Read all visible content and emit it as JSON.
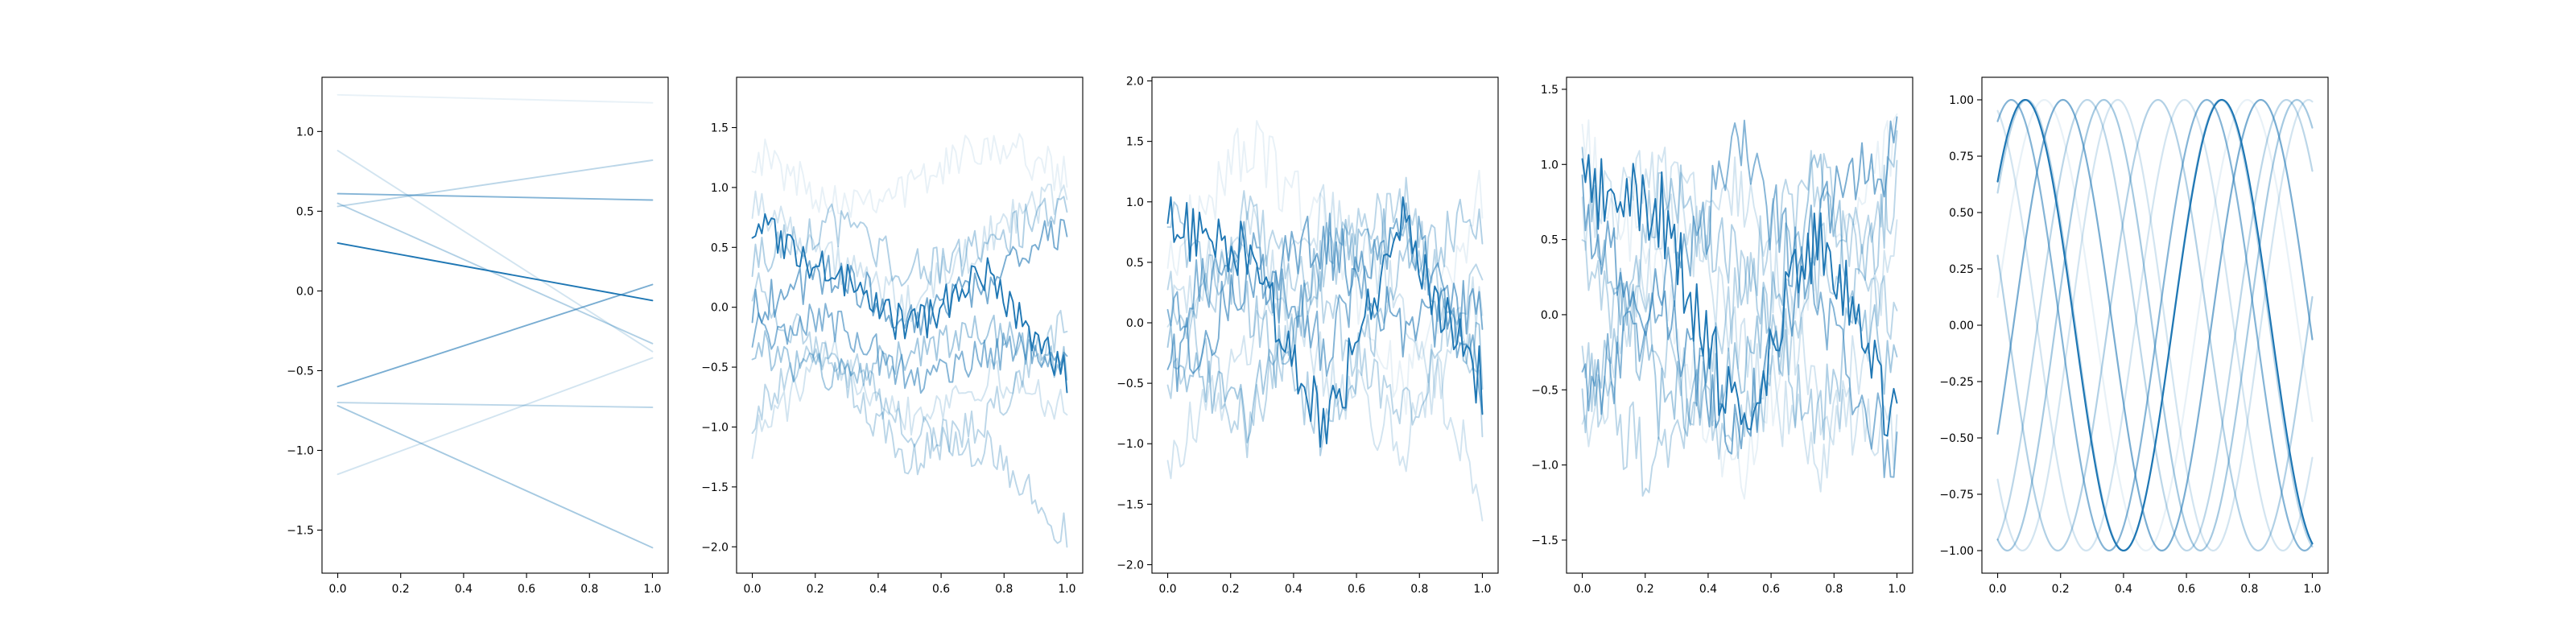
{
  "figure": {
    "background": "#ffffff",
    "line_color": "#1f77b4",
    "alpha_min": 0.1,
    "alpha_max": 1.0
  },
  "chart_data": [
    {
      "type": "line",
      "title": "",
      "xlabel": "",
      "ylabel": "",
      "xlim": [
        -0.05,
        1.05
      ],
      "ylim": [
        -1.77,
        1.34
      ],
      "x_ticks": [
        0.0,
        0.2,
        0.4,
        0.6,
        0.8,
        1.0
      ],
      "x_tick_labels": [
        "0.0",
        "0.2",
        "0.4",
        "0.6",
        "0.8",
        "1.0"
      ],
      "y_ticks": [
        -1.5,
        -1.0,
        -0.5,
        0.0,
        0.5,
        1.0
      ],
      "y_tick_labels": [
        "−1.5",
        "−1.0",
        "−0.5",
        "0.0",
        "0.5",
        "1.0"
      ],
      "grid": false,
      "legend": "none",
      "x": [
        0.0,
        1.0
      ],
      "series": [
        {
          "alpha": 0.1,
          "values": [
            1.23,
            1.18
          ]
        },
        {
          "alpha": 0.2,
          "values": [
            0.88,
            -0.38
          ]
        },
        {
          "alpha": 0.2,
          "values": [
            -1.15,
            -0.42
          ]
        },
        {
          "alpha": 0.3,
          "values": [
            -0.7,
            -0.73
          ]
        },
        {
          "alpha": 0.3,
          "values": [
            0.53,
            0.82
          ]
        },
        {
          "alpha": 0.35,
          "values": [
            0.55,
            -0.33
          ]
        },
        {
          "alpha": 0.4,
          "values": [
            -0.72,
            -1.61
          ]
        },
        {
          "alpha": 0.55,
          "values": [
            0.61,
            0.57
          ]
        },
        {
          "alpha": 0.6,
          "values": [
            -0.6,
            0.04
          ]
        },
        {
          "alpha": 1.0,
          "values": [
            0.3,
            -0.06
          ]
        }
      ]
    },
    {
      "type": "line",
      "title": "",
      "xlabel": "",
      "ylabel": "",
      "xlim": [
        -0.05,
        1.05
      ],
      "ylim": [
        -2.22,
        1.92
      ],
      "x_ticks": [
        0.0,
        0.2,
        0.4,
        0.6,
        0.8,
        1.0
      ],
      "x_tick_labels": [
        "0.0",
        "0.2",
        "0.4",
        "0.6",
        "0.8",
        "1.0"
      ],
      "y_ticks": [
        -2.0,
        -1.5,
        -1.0,
        -0.5,
        0.0,
        0.5,
        1.0,
        1.5
      ],
      "y_tick_labels": [
        "−2.0",
        "−1.5",
        "−1.0",
        "−0.5",
        "0.0",
        "0.5",
        "1.0",
        "1.5"
      ],
      "grid": false,
      "legend": "none",
      "series_style": "random walk, 100 samples per series on x in [0, 1], 10 series",
      "series_anchors": [
        {
          "alpha": 0.1,
          "x": [
            0,
            0.25,
            0.5,
            0.75,
            1
          ],
          "values": [
            1.3,
            0.9,
            1.0,
            1.4,
            1.1
          ]
        },
        {
          "alpha": 0.2,
          "x": [
            0,
            0.25,
            0.5,
            0.75,
            1
          ],
          "values": [
            -1.1,
            -0.4,
            -0.9,
            -0.6,
            -0.8
          ]
        },
        {
          "alpha": 0.2,
          "x": [
            0,
            0.25,
            0.5,
            0.75,
            1
          ],
          "values": [
            0.9,
            0.4,
            0.0,
            0.6,
            1.0
          ]
        },
        {
          "alpha": 0.3,
          "x": [
            0,
            0.25,
            0.5,
            0.75,
            1
          ],
          "values": [
            -0.9,
            -0.3,
            -1.0,
            -1.2,
            -1.9
          ]
        },
        {
          "alpha": 0.3,
          "x": [
            0,
            0.25,
            0.5,
            0.75,
            1
          ],
          "values": [
            0.2,
            -0.5,
            -1.3,
            -0.9,
            -0.1
          ]
        },
        {
          "alpha": 0.35,
          "x": [
            0,
            0.25,
            0.5,
            0.75,
            1
          ],
          "values": [
            0.4,
            0.7,
            0.3,
            0.5,
            0.9
          ]
        },
        {
          "alpha": 0.4,
          "x": [
            0,
            0.25,
            0.5,
            0.75,
            1
          ],
          "values": [
            -0.3,
            -0.6,
            -0.4,
            -0.2,
            -0.5
          ]
        },
        {
          "alpha": 0.55,
          "x": [
            0,
            0.25,
            0.5,
            0.75,
            1
          ],
          "values": [
            -0.2,
            -0.1,
            -0.6,
            -0.4,
            -0.3
          ]
        },
        {
          "alpha": 0.6,
          "x": [
            0,
            0.25,
            0.5,
            0.75,
            1
          ],
          "values": [
            0.0,
            0.3,
            -0.1,
            0.2,
            0.7
          ]
        },
        {
          "alpha": 1.0,
          "x": [
            0,
            0.25,
            0.5,
            0.75,
            1
          ],
          "values": [
            0.7,
            0.3,
            -0.2,
            0.3,
            -0.6
          ]
        }
      ]
    },
    {
      "type": "line",
      "title": "",
      "xlabel": "",
      "ylabel": "",
      "xlim": [
        -0.05,
        1.05
      ],
      "ylim": [
        -2.07,
        2.03
      ],
      "x_ticks": [
        0.0,
        0.2,
        0.4,
        0.6,
        0.8,
        1.0
      ],
      "x_tick_labels": [
        "0.0",
        "0.2",
        "0.4",
        "0.6",
        "0.8",
        "1.0"
      ],
      "y_ticks": [
        -2.0,
        -1.5,
        -1.0,
        -0.5,
        0.0,
        0.5,
        1.0,
        1.5,
        2.0
      ],
      "y_tick_labels": [
        "−2.0",
        "−1.5",
        "−1.0",
        "−0.5",
        "0.0",
        "0.5",
        "1.0",
        "1.5",
        "2.0"
      ],
      "grid": false,
      "legend": "none",
      "series_style": "noisy sine, 100 samples per series on x in [0, 1], 10 series",
      "series_anchors": [
        {
          "alpha": 0.1,
          "x": [
            0,
            0.25,
            0.5,
            0.75,
            1
          ],
          "values": [
            0.5,
            1.5,
            0.8,
            -0.6,
            1.1
          ]
        },
        {
          "alpha": 0.2,
          "x": [
            0,
            0.25,
            0.5,
            0.75,
            1
          ],
          "values": [
            -1.1,
            -0.3,
            0.9,
            0.2,
            -1.4
          ]
        },
        {
          "alpha": 0.2,
          "x": [
            0,
            0.25,
            0.5,
            0.75,
            1
          ],
          "values": [
            0.0,
            0.8,
            -0.4,
            -1.0,
            0.3
          ]
        },
        {
          "alpha": 0.3,
          "x": [
            0,
            0.25,
            0.5,
            0.75,
            1
          ],
          "values": [
            0.3,
            -0.9,
            0.5,
            1.0,
            -0.7
          ]
        },
        {
          "alpha": 0.3,
          "x": [
            0,
            0.25,
            0.5,
            0.75,
            1
          ],
          "values": [
            -0.5,
            0.9,
            0.1,
            -0.8,
            0.6
          ]
        },
        {
          "alpha": 0.35,
          "x": [
            0,
            0.25,
            0.5,
            0.75,
            1
          ],
          "values": [
            0.8,
            0.2,
            -0.9,
            0.4,
            0.9
          ]
        },
        {
          "alpha": 0.4,
          "x": [
            0,
            0.25,
            0.5,
            0.75,
            1
          ],
          "values": [
            -0.2,
            -0.8,
            0.6,
            0.7,
            -0.3
          ]
        },
        {
          "alpha": 0.55,
          "x": [
            0,
            0.25,
            0.5,
            0.75,
            1
          ],
          "values": [
            0.1,
            0.6,
            -0.2,
            0.9,
            -0.5
          ]
        },
        {
          "alpha": 0.6,
          "x": [
            0,
            0.25,
            0.5,
            0.75,
            1
          ],
          "values": [
            -0.4,
            0.3,
            0.7,
            -0.1,
            0.2
          ]
        },
        {
          "alpha": 1.0,
          "x": [
            0,
            0.25,
            0.5,
            0.75,
            1
          ],
          "values": [
            0.8,
            0.6,
            -0.9,
            0.8,
            -0.5
          ]
        }
      ]
    },
    {
      "type": "line",
      "title": "",
      "xlabel": "",
      "ylabel": "",
      "xlim": [
        -0.05,
        1.05
      ],
      "ylim": [
        -1.72,
        1.58
      ],
      "x_ticks": [
        0.0,
        0.2,
        0.4,
        0.6,
        0.8,
        1.0
      ],
      "x_tick_labels": [
        "0.0",
        "0.2",
        "0.4",
        "0.6",
        "0.8",
        "1.0"
      ],
      "y_ticks": [
        -1.5,
        -1.0,
        -0.5,
        0.0,
        0.5,
        1.0,
        1.5
      ],
      "y_tick_labels": [
        "−1.5",
        "−1.0",
        "−0.5",
        "0.0",
        "0.5",
        "1.0",
        "1.5"
      ],
      "grid": false,
      "legend": "none",
      "series_style": "noisy sine, 100 samples per series on x in [0, 1], 10 series",
      "series_anchors": [
        {
          "alpha": 0.1,
          "x": [
            0,
            0.25,
            0.5,
            0.75,
            1
          ],
          "values": [
            1.1,
            0.2,
            -1.2,
            0.4,
            1.1
          ]
        },
        {
          "alpha": 0.2,
          "x": [
            0,
            0.25,
            0.5,
            0.75,
            1
          ],
          "values": [
            -0.9,
            0.6,
            0.9,
            -0.6,
            -0.9
          ]
        },
        {
          "alpha": 0.2,
          "x": [
            0,
            0.25,
            0.5,
            0.75,
            1
          ],
          "values": [
            0.6,
            1.0,
            -0.2,
            -1.0,
            0.4
          ]
        },
        {
          "alpha": 0.3,
          "x": [
            0,
            0.25,
            0.5,
            0.75,
            1
          ],
          "values": [
            -0.4,
            -1.1,
            0.2,
            1.0,
            -0.2
          ]
        },
        {
          "alpha": 0.3,
          "x": [
            0,
            0.25,
            0.5,
            0.75,
            1
          ],
          "values": [
            0.3,
            -0.2,
            -0.9,
            0.3,
            0.8
          ]
        },
        {
          "alpha": 0.35,
          "x": [
            0,
            0.25,
            0.5,
            0.75,
            1
          ],
          "values": [
            -0.7,
            0.9,
            0.3,
            -0.8,
            1.0
          ]
        },
        {
          "alpha": 0.4,
          "x": [
            0,
            0.25,
            0.5,
            0.75,
            1
          ],
          "values": [
            0.9,
            -0.6,
            -0.4,
            0.9,
            -0.5
          ]
        },
        {
          "alpha": 0.55,
          "x": [
            0,
            0.25,
            0.5,
            0.75,
            1
          ],
          "values": [
            -0.6,
            0.1,
            1.1,
            0.0,
            -1.0
          ]
        },
        {
          "alpha": 0.6,
          "x": [
            0,
            0.25,
            0.5,
            0.75,
            1
          ],
          "values": [
            0.7,
            0.0,
            -0.9,
            0.6,
            1.1
          ]
        },
        {
          "alpha": 1.0,
          "x": [
            0,
            0.25,
            0.5,
            0.75,
            1
          ],
          "values": [
            0.8,
            0.7,
            -0.8,
            0.6,
            -0.8
          ]
        }
      ]
    },
    {
      "type": "line",
      "title": "",
      "xlabel": "",
      "ylabel": "",
      "xlim": [
        -0.05,
        1.05
      ],
      "ylim": [
        -1.1,
        1.1
      ],
      "x_ticks": [
        0.0,
        0.2,
        0.4,
        0.6,
        0.8,
        1.0
      ],
      "x_tick_labels": [
        "0.0",
        "0.2",
        "0.4",
        "0.6",
        "0.8",
        "1.0"
      ],
      "y_ticks": [
        -1.0,
        -0.75,
        -0.5,
        -0.25,
        0.0,
        0.25,
        0.5,
        0.75,
        1.0
      ],
      "y_tick_labels": [
        "−1.00",
        "−0.75",
        "−0.50",
        "−0.25",
        "0.00",
        "0.25",
        "0.50",
        "0.75",
        "1.00"
      ],
      "grid": false,
      "legend": "none",
      "series_style": "y = sin(2*pi*(f*x + phase)), smooth, 10 series",
      "series": [
        {
          "alpha": 0.1,
          "frequency": 1.55,
          "phase": 0.02
        },
        {
          "alpha": 0.2,
          "frequency": 1.65,
          "phase": 0.62
        },
        {
          "alpha": 0.2,
          "frequency": 1.6,
          "phase": 0.3
        },
        {
          "alpha": 0.3,
          "frequency": 1.58,
          "phase": 0.8
        },
        {
          "alpha": 0.3,
          "frequency": 1.62,
          "phase": 0.1
        },
        {
          "alpha": 0.35,
          "frequency": 1.57,
          "phase": 0.45
        },
        {
          "alpha": 0.4,
          "frequency": 1.63,
          "phase": 0.7
        },
        {
          "alpha": 0.55,
          "frequency": 1.61,
          "phase": 0.18
        },
        {
          "alpha": 0.6,
          "frequency": 1.59,
          "phase": 0.92
        },
        {
          "alpha": 1.0,
          "frequency": 1.6,
          "phase": 0.11
        }
      ]
    }
  ]
}
